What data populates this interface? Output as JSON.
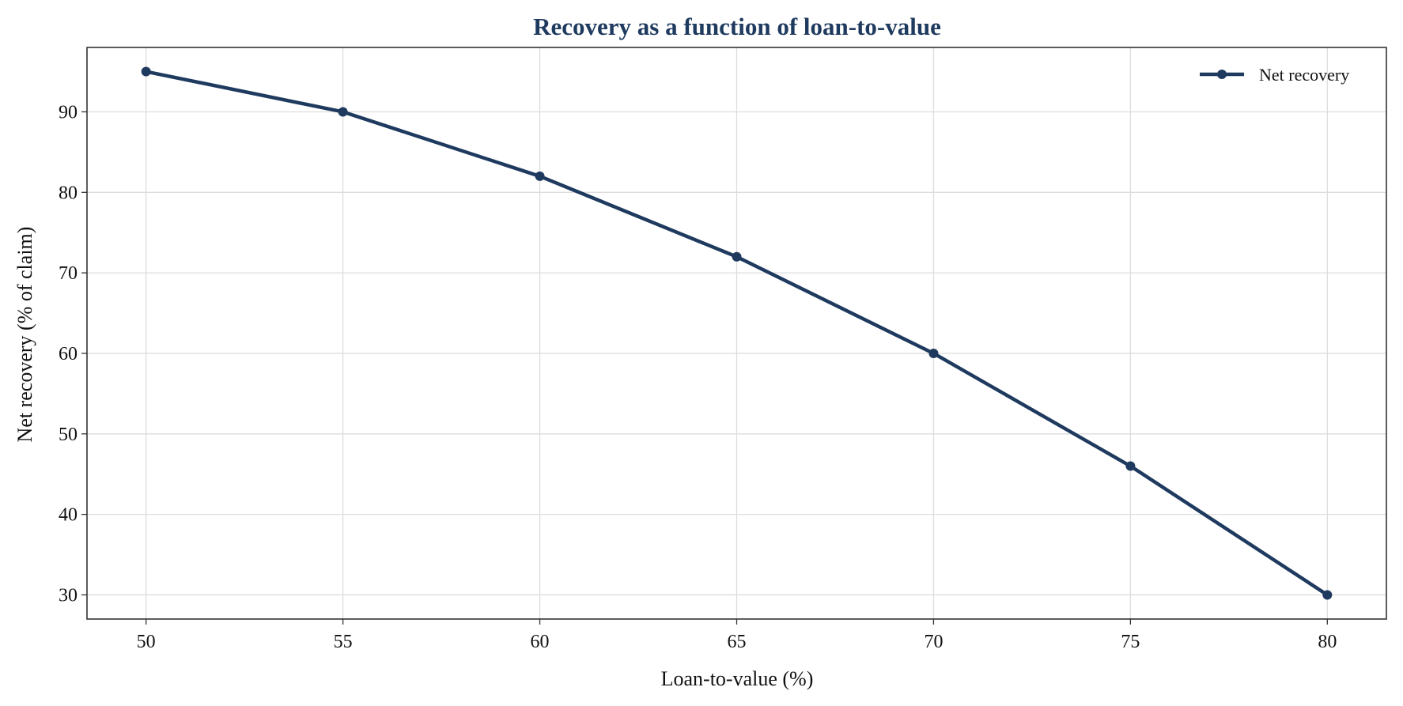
{
  "chart_data": {
    "type": "line",
    "title": "Recovery as a function of loan-to-value",
    "xlabel": "Loan-to-value (%)",
    "ylabel": "Net recovery (% of claim)",
    "x": [
      50,
      55,
      60,
      65,
      70,
      75,
      80
    ],
    "series": [
      {
        "name": "Net recovery",
        "values": [
          95,
          90,
          82,
          72,
          60,
          46,
          30
        ],
        "color": "#1f3a5f",
        "marker": "circle"
      }
    ],
    "xlim": [
      48.5,
      81.5
    ],
    "ylim": [
      27,
      98
    ],
    "xticks": [
      50,
      55,
      60,
      65,
      70,
      75,
      80
    ],
    "yticks": [
      30,
      40,
      50,
      60,
      70,
      80,
      90
    ],
    "grid": true,
    "legend_position": "top-right",
    "title_color": "#1f3a5f",
    "axis_color": "#333333",
    "grid_color": "#dddddd"
  }
}
